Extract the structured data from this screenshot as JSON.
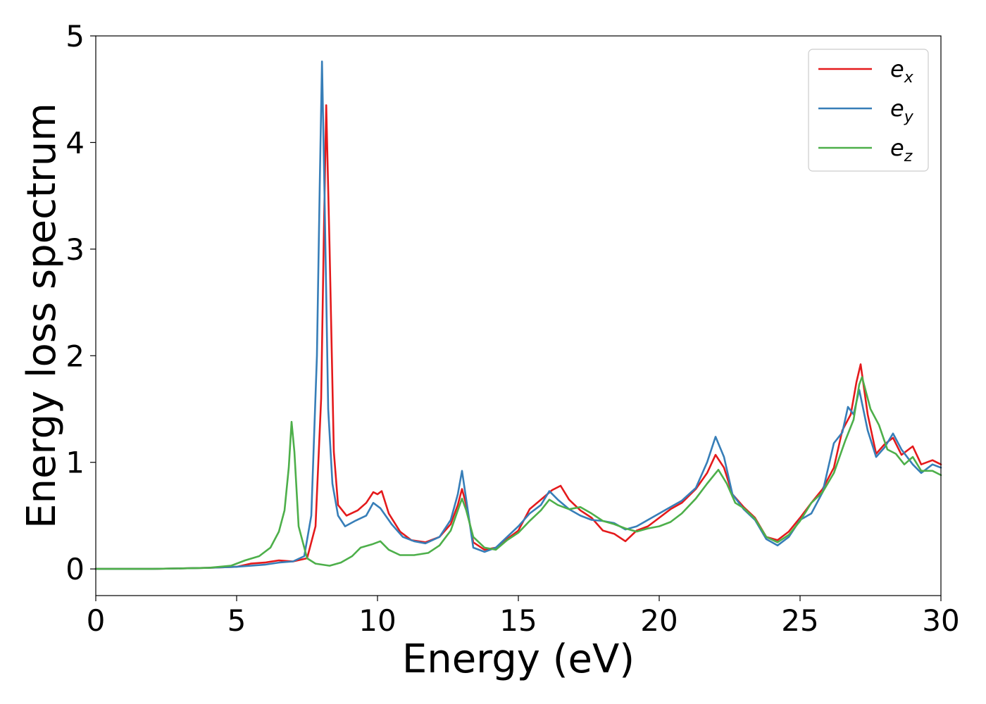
{
  "chart_data": {
    "type": "line",
    "xlabel": "Energy (eV)",
    "ylabel": "Energy loss spectrum",
    "xlim": [
      0,
      30
    ],
    "ylim": [
      -0.25,
      5
    ],
    "xticks": [
      0,
      5,
      10,
      15,
      20,
      25,
      30
    ],
    "yticks": [
      0,
      1,
      2,
      3,
      4,
      5
    ],
    "grid": false,
    "legend_position": "top-right",
    "series": [
      {
        "name": "e_x",
        "label_base": "e",
        "label_sub": "x",
        "color": "#e41a1c",
        "points": [
          [
            0,
            0
          ],
          [
            2,
            0
          ],
          [
            4,
            0.01
          ],
          [
            5,
            0.02
          ],
          [
            5.5,
            0.05
          ],
          [
            6,
            0.06
          ],
          [
            6.5,
            0.08
          ],
          [
            7,
            0.07
          ],
          [
            7.5,
            0.1
          ],
          [
            7.8,
            0.4
          ],
          [
            8.0,
            1.6
          ],
          [
            8.1,
            3.2
          ],
          [
            8.18,
            4.35
          ],
          [
            8.3,
            3.0
          ],
          [
            8.45,
            1.1
          ],
          [
            8.6,
            0.6
          ],
          [
            8.9,
            0.5
          ],
          [
            9.3,
            0.55
          ],
          [
            9.6,
            0.62
          ],
          [
            9.85,
            0.72
          ],
          [
            10.0,
            0.7
          ],
          [
            10.15,
            0.73
          ],
          [
            10.4,
            0.52
          ],
          [
            10.8,
            0.35
          ],
          [
            11.2,
            0.27
          ],
          [
            11.7,
            0.25
          ],
          [
            12.2,
            0.3
          ],
          [
            12.6,
            0.42
          ],
          [
            12.85,
            0.6
          ],
          [
            13.0,
            0.75
          ],
          [
            13.15,
            0.6
          ],
          [
            13.4,
            0.25
          ],
          [
            13.8,
            0.18
          ],
          [
            14.2,
            0.2
          ],
          [
            14.6,
            0.28
          ],
          [
            15.0,
            0.36
          ],
          [
            15.4,
            0.56
          ],
          [
            15.8,
            0.65
          ],
          [
            16.2,
            0.74
          ],
          [
            16.5,
            0.78
          ],
          [
            16.8,
            0.65
          ],
          [
            17.2,
            0.55
          ],
          [
            17.6,
            0.48
          ],
          [
            18.0,
            0.36
          ],
          [
            18.4,
            0.33
          ],
          [
            18.8,
            0.26
          ],
          [
            19.2,
            0.36
          ],
          [
            19.6,
            0.4
          ],
          [
            20.0,
            0.48
          ],
          [
            20.4,
            0.56
          ],
          [
            20.8,
            0.62
          ],
          [
            21.3,
            0.75
          ],
          [
            21.7,
            0.9
          ],
          [
            22.0,
            1.07
          ],
          [
            22.3,
            0.95
          ],
          [
            22.6,
            0.7
          ],
          [
            23.0,
            0.58
          ],
          [
            23.4,
            0.48
          ],
          [
            23.8,
            0.3
          ],
          [
            24.2,
            0.27
          ],
          [
            24.6,
            0.35
          ],
          [
            25.0,
            0.48
          ],
          [
            25.4,
            0.62
          ],
          [
            25.8,
            0.75
          ],
          [
            26.2,
            0.95
          ],
          [
            26.5,
            1.3
          ],
          [
            26.8,
            1.45
          ],
          [
            27.0,
            1.75
          ],
          [
            27.15,
            1.92
          ],
          [
            27.4,
            1.45
          ],
          [
            27.7,
            1.08
          ],
          [
            28.0,
            1.17
          ],
          [
            28.3,
            1.23
          ],
          [
            28.6,
            1.07
          ],
          [
            29.0,
            1.15
          ],
          [
            29.3,
            0.98
          ],
          [
            29.7,
            1.02
          ],
          [
            30.0,
            0.98
          ]
        ]
      },
      {
        "name": "e_y",
        "label_base": "e",
        "label_sub": "y",
        "color": "#377eb8",
        "points": [
          [
            0,
            0
          ],
          [
            2,
            0
          ],
          [
            4,
            0.01
          ],
          [
            5,
            0.02
          ],
          [
            5.5,
            0.03
          ],
          [
            6,
            0.04
          ],
          [
            6.5,
            0.06
          ],
          [
            7.0,
            0.07
          ],
          [
            7.4,
            0.12
          ],
          [
            7.65,
            0.5
          ],
          [
            7.85,
            2.0
          ],
          [
            7.95,
            3.6
          ],
          [
            8.03,
            4.76
          ],
          [
            8.12,
            3.5
          ],
          [
            8.25,
            1.5
          ],
          [
            8.4,
            0.8
          ],
          [
            8.6,
            0.5
          ],
          [
            8.85,
            0.4
          ],
          [
            9.2,
            0.45
          ],
          [
            9.6,
            0.5
          ],
          [
            9.85,
            0.62
          ],
          [
            10.1,
            0.57
          ],
          [
            10.5,
            0.42
          ],
          [
            10.9,
            0.3
          ],
          [
            11.3,
            0.26
          ],
          [
            11.7,
            0.24
          ],
          [
            12.2,
            0.3
          ],
          [
            12.6,
            0.46
          ],
          [
            12.85,
            0.7
          ],
          [
            13.0,
            0.92
          ],
          [
            13.15,
            0.65
          ],
          [
            13.4,
            0.2
          ],
          [
            13.8,
            0.16
          ],
          [
            14.2,
            0.2
          ],
          [
            14.6,
            0.3
          ],
          [
            15.0,
            0.4
          ],
          [
            15.4,
            0.52
          ],
          [
            15.8,
            0.6
          ],
          [
            16.1,
            0.73
          ],
          [
            16.4,
            0.65
          ],
          [
            16.8,
            0.56
          ],
          [
            17.2,
            0.5
          ],
          [
            17.6,
            0.46
          ],
          [
            18.0,
            0.45
          ],
          [
            18.4,
            0.43
          ],
          [
            18.8,
            0.37
          ],
          [
            19.2,
            0.4
          ],
          [
            19.6,
            0.46
          ],
          [
            20.0,
            0.52
          ],
          [
            20.4,
            0.58
          ],
          [
            20.8,
            0.64
          ],
          [
            21.3,
            0.76
          ],
          [
            21.7,
            1.0
          ],
          [
            22.0,
            1.24
          ],
          [
            22.3,
            1.05
          ],
          [
            22.6,
            0.7
          ],
          [
            23.0,
            0.56
          ],
          [
            23.4,
            0.46
          ],
          [
            23.8,
            0.28
          ],
          [
            24.2,
            0.22
          ],
          [
            24.6,
            0.3
          ],
          [
            25.0,
            0.46
          ],
          [
            25.4,
            0.52
          ],
          [
            25.8,
            0.72
          ],
          [
            26.2,
            1.18
          ],
          [
            26.5,
            1.28
          ],
          [
            26.7,
            1.52
          ],
          [
            26.9,
            1.45
          ],
          [
            27.1,
            1.68
          ],
          [
            27.4,
            1.3
          ],
          [
            27.7,
            1.05
          ],
          [
            28.0,
            1.14
          ],
          [
            28.3,
            1.27
          ],
          [
            28.6,
            1.12
          ],
          [
            29.0,
            0.98
          ],
          [
            29.3,
            0.9
          ],
          [
            29.7,
            0.98
          ],
          [
            30.0,
            0.95
          ]
        ]
      },
      {
        "name": "e_z",
        "label_base": "e",
        "label_sub": "z",
        "color": "#4daf4a",
        "points": [
          [
            0,
            0
          ],
          [
            2,
            0
          ],
          [
            4,
            0.01
          ],
          [
            4.8,
            0.03
          ],
          [
            5.3,
            0.08
          ],
          [
            5.8,
            0.12
          ],
          [
            6.2,
            0.2
          ],
          [
            6.5,
            0.35
          ],
          [
            6.7,
            0.55
          ],
          [
            6.85,
            0.95
          ],
          [
            6.95,
            1.38
          ],
          [
            7.05,
            1.1
          ],
          [
            7.2,
            0.4
          ],
          [
            7.5,
            0.1
          ],
          [
            7.8,
            0.05
          ],
          [
            8.3,
            0.03
          ],
          [
            8.7,
            0.06
          ],
          [
            9.1,
            0.12
          ],
          [
            9.4,
            0.2
          ],
          [
            9.8,
            0.23
          ],
          [
            10.1,
            0.26
          ],
          [
            10.4,
            0.18
          ],
          [
            10.8,
            0.13
          ],
          [
            11.3,
            0.13
          ],
          [
            11.8,
            0.15
          ],
          [
            12.2,
            0.22
          ],
          [
            12.6,
            0.36
          ],
          [
            12.85,
            0.55
          ],
          [
            13.0,
            0.66
          ],
          [
            13.15,
            0.55
          ],
          [
            13.4,
            0.3
          ],
          [
            13.8,
            0.2
          ],
          [
            14.2,
            0.18
          ],
          [
            14.6,
            0.27
          ],
          [
            15.0,
            0.34
          ],
          [
            15.4,
            0.45
          ],
          [
            15.8,
            0.55
          ],
          [
            16.1,
            0.65
          ],
          [
            16.4,
            0.6
          ],
          [
            16.8,
            0.56
          ],
          [
            17.2,
            0.58
          ],
          [
            17.6,
            0.52
          ],
          [
            18.0,
            0.45
          ],
          [
            18.4,
            0.42
          ],
          [
            18.8,
            0.38
          ],
          [
            19.2,
            0.35
          ],
          [
            19.6,
            0.38
          ],
          [
            20.0,
            0.4
          ],
          [
            20.4,
            0.44
          ],
          [
            20.8,
            0.52
          ],
          [
            21.3,
            0.66
          ],
          [
            21.7,
            0.8
          ],
          [
            22.1,
            0.93
          ],
          [
            22.4,
            0.8
          ],
          [
            22.7,
            0.62
          ],
          [
            23.0,
            0.57
          ],
          [
            23.4,
            0.47
          ],
          [
            23.8,
            0.3
          ],
          [
            24.2,
            0.25
          ],
          [
            24.6,
            0.32
          ],
          [
            25.0,
            0.45
          ],
          [
            25.4,
            0.62
          ],
          [
            25.8,
            0.72
          ],
          [
            26.2,
            0.9
          ],
          [
            26.6,
            1.2
          ],
          [
            26.9,
            1.4
          ],
          [
            27.1,
            1.73
          ],
          [
            27.2,
            1.8
          ],
          [
            27.5,
            1.5
          ],
          [
            27.8,
            1.35
          ],
          [
            28.1,
            1.12
          ],
          [
            28.4,
            1.08
          ],
          [
            28.7,
            0.98
          ],
          [
            29.0,
            1.05
          ],
          [
            29.3,
            0.92
          ],
          [
            29.7,
            0.92
          ],
          [
            30.0,
            0.88
          ]
        ]
      }
    ]
  }
}
